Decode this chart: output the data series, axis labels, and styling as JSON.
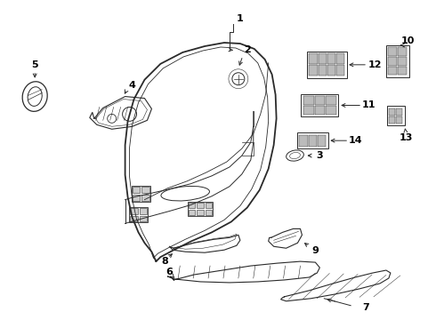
{
  "background_color": "#ffffff",
  "line_color": "#2a2a2a",
  "label_color": "#000000",
  "fig_width": 4.9,
  "fig_height": 3.6,
  "dpi": 100
}
